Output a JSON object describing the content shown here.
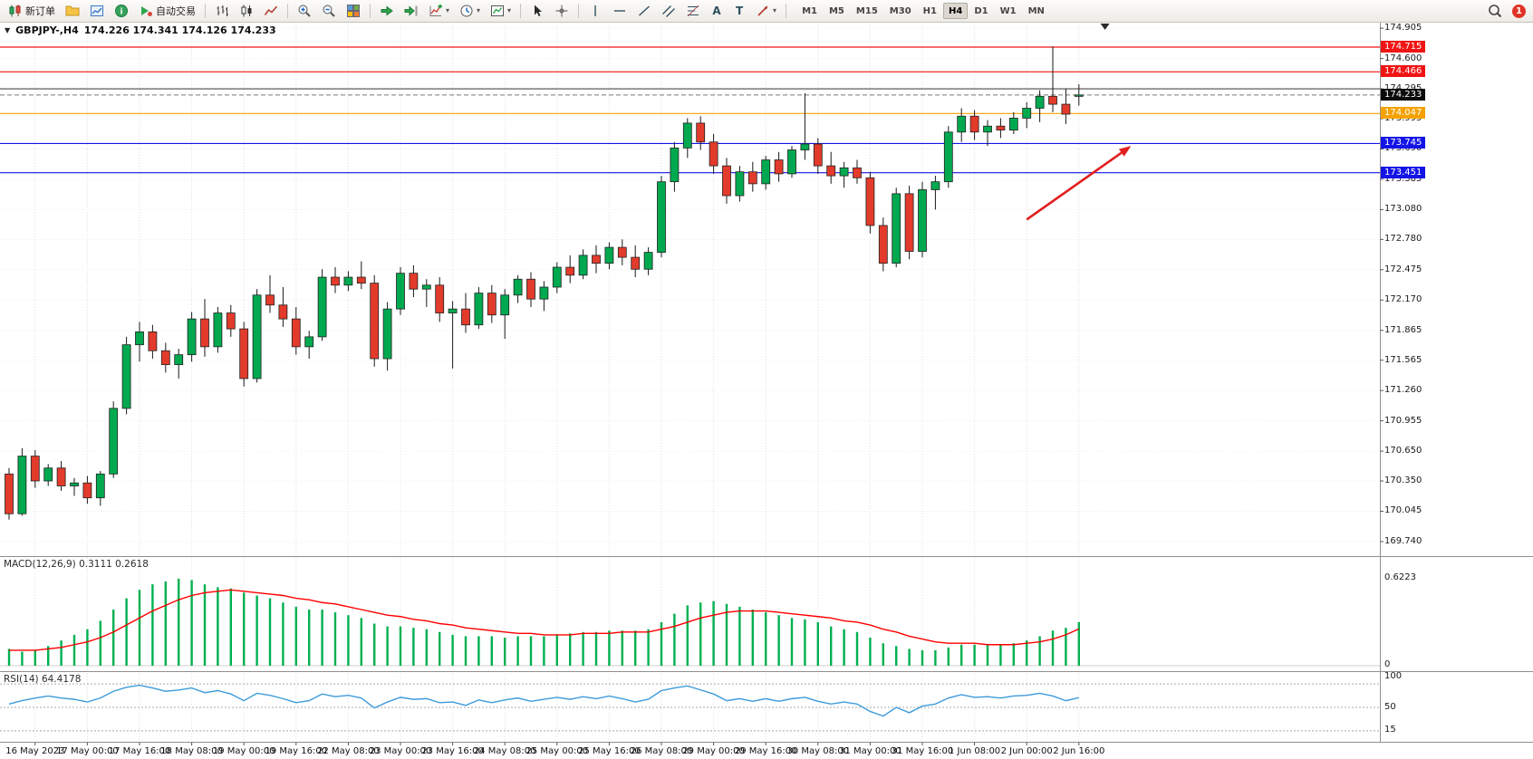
{
  "toolbar": {
    "new_order_label": "新订单",
    "autotrading_label": "自动交易",
    "text_tool_glyph": "A",
    "label_tool_glyph": "T",
    "caret_glyph": "▾",
    "collapse_glyph": "▼",
    "timeframes": [
      "M1",
      "M5",
      "M15",
      "M30",
      "H1",
      "H4",
      "D1",
      "W1",
      "MN"
    ],
    "active_timeframe": "H4",
    "notification_count": "1"
  },
  "chart_data": {
    "type": "candlestick",
    "symbol": "GBPJPY-",
    "period": "H4",
    "title_text": "GBPJPY-,H4",
    "ohlc_text": "174.226 174.341 174.126 174.233",
    "price_axis_ticks": [
      "174.905",
      "174.600",
      "174.295",
      "173.995",
      "173.690",
      "173.385",
      "173.080",
      "172.780",
      "172.475",
      "172.170",
      "171.865",
      "171.565",
      "171.260",
      "170.955",
      "170.650",
      "170.350",
      "170.045",
      "169.740"
    ],
    "time_axis_labels": [
      "16 May 2023",
      "17 May 00:00",
      "17 May 16:00",
      "18 May 08:00",
      "19 May 00:00",
      "19 May 16:00",
      "22 May 08:00",
      "23 May 00:00",
      "23 May 16:00",
      "24 May 08:00",
      "25 May 00:00",
      "25 May 16:00",
      "26 May 08:00",
      "29 May 00:00",
      "29 May 16:00",
      "30 May 08:00",
      "31 May 00:00",
      "31 May 16:00",
      "1 Jun 08:00",
      "2 Jun 00:00",
      "2 Jun 16:00"
    ],
    "time_label_start_index": 2,
    "time_label_step": 4,
    "colors": {
      "bull": "#00a94f",
      "bear": "#e23b2b",
      "wick": "#1a1a1a",
      "grid": "#e2e2e2",
      "separator": "#8f8f8f",
      "macd_hist": "#00b050",
      "macd_signal": "#ff0000",
      "rsi_line": "#3e9bdb",
      "axis_text": "#1a1a1a"
    },
    "candles_ohlc": [
      [
        170.42,
        170.48,
        169.96,
        170.02
      ],
      [
        170.02,
        170.68,
        170.0,
        170.6
      ],
      [
        170.6,
        170.66,
        170.28,
        170.35
      ],
      [
        170.35,
        170.52,
        170.3,
        170.48
      ],
      [
        170.48,
        170.55,
        170.25,
        170.3
      ],
      [
        170.3,
        170.38,
        170.2,
        170.33
      ],
      [
        170.33,
        170.4,
        170.12,
        170.18
      ],
      [
        170.18,
        170.45,
        170.1,
        170.42
      ],
      [
        170.42,
        171.15,
        170.38,
        171.08
      ],
      [
        171.08,
        171.8,
        171.02,
        171.72
      ],
      [
        171.72,
        171.95,
        171.55,
        171.85
      ],
      [
        171.85,
        171.92,
        171.58,
        171.66
      ],
      [
        171.66,
        171.74,
        171.44,
        171.52
      ],
      [
        171.52,
        171.68,
        171.38,
        171.62
      ],
      [
        171.62,
        172.05,
        171.55,
        171.98
      ],
      [
        171.98,
        172.18,
        171.6,
        171.7
      ],
      [
        171.7,
        172.1,
        171.64,
        172.04
      ],
      [
        172.04,
        172.12,
        171.8,
        171.88
      ],
      [
        171.88,
        171.95,
        171.3,
        171.38
      ],
      [
        171.38,
        172.28,
        171.34,
        172.22
      ],
      [
        172.22,
        172.42,
        172.04,
        172.12
      ],
      [
        172.12,
        172.3,
        171.9,
        171.98
      ],
      [
        171.98,
        172.1,
        171.62,
        171.7
      ],
      [
        171.7,
        171.86,
        171.58,
        171.8
      ],
      [
        171.8,
        172.48,
        171.76,
        172.4
      ],
      [
        172.4,
        172.5,
        172.24,
        172.32
      ],
      [
        172.32,
        172.46,
        172.26,
        172.4
      ],
      [
        172.4,
        172.56,
        172.28,
        172.34
      ],
      [
        172.34,
        172.42,
        171.5,
        171.58
      ],
      [
        171.58,
        172.15,
        171.46,
        172.08
      ],
      [
        172.08,
        172.5,
        172.02,
        172.44
      ],
      [
        172.44,
        172.52,
        172.2,
        172.28
      ],
      [
        172.28,
        172.38,
        172.1,
        172.32
      ],
      [
        172.32,
        172.4,
        171.95,
        172.04
      ],
      [
        172.04,
        172.16,
        171.48,
        172.08
      ],
      [
        172.08,
        172.24,
        171.84,
        171.92
      ],
      [
        171.92,
        172.3,
        171.88,
        172.24
      ],
      [
        172.24,
        172.32,
        171.94,
        172.02
      ],
      [
        172.02,
        172.28,
        171.78,
        172.22
      ],
      [
        172.22,
        172.42,
        172.14,
        172.38
      ],
      [
        172.38,
        172.45,
        172.1,
        172.18
      ],
      [
        172.18,
        172.36,
        172.06,
        172.3
      ],
      [
        172.3,
        172.55,
        172.24,
        172.5
      ],
      [
        172.5,
        172.62,
        172.34,
        172.42
      ],
      [
        172.42,
        172.68,
        172.38,
        172.62
      ],
      [
        172.62,
        172.72,
        172.44,
        172.54
      ],
      [
        172.54,
        172.75,
        172.48,
        172.7
      ],
      [
        172.7,
        172.78,
        172.52,
        172.6
      ],
      [
        172.6,
        172.72,
        172.4,
        172.48
      ],
      [
        172.48,
        172.7,
        172.42,
        172.65
      ],
      [
        172.65,
        173.42,
        172.6,
        173.36
      ],
      [
        173.36,
        173.76,
        173.26,
        173.7
      ],
      [
        173.7,
        174.0,
        173.6,
        173.95
      ],
      [
        173.95,
        174.02,
        173.68,
        173.76
      ],
      [
        173.76,
        173.84,
        173.44,
        173.52
      ],
      [
        173.52,
        173.6,
        173.14,
        173.22
      ],
      [
        173.22,
        173.52,
        173.16,
        173.46
      ],
      [
        173.46,
        173.56,
        173.26,
        173.34
      ],
      [
        173.34,
        173.62,
        173.28,
        173.58
      ],
      [
        173.58,
        173.66,
        173.36,
        173.44
      ],
      [
        173.44,
        173.72,
        173.4,
        173.68
      ],
      [
        173.68,
        174.25,
        173.58,
        173.74
      ],
      [
        173.74,
        173.8,
        173.44,
        173.52
      ],
      [
        173.52,
        173.66,
        173.34,
        173.42
      ],
      [
        173.42,
        173.56,
        173.3,
        173.5
      ],
      [
        173.5,
        173.58,
        173.34,
        173.4
      ],
      [
        173.4,
        173.46,
        172.84,
        172.92
      ],
      [
        172.92,
        173.0,
        172.46,
        172.54
      ],
      [
        172.54,
        173.3,
        172.5,
        173.24
      ],
      [
        173.24,
        173.32,
        172.58,
        172.66
      ],
      [
        172.66,
        173.36,
        172.6,
        173.28
      ],
      [
        173.28,
        173.42,
        173.08,
        173.36
      ],
      [
        173.36,
        173.92,
        173.3,
        173.86
      ],
      [
        173.86,
        174.1,
        173.76,
        174.02
      ],
      [
        174.02,
        174.08,
        173.78,
        173.86
      ],
      [
        173.86,
        173.98,
        173.72,
        173.92
      ],
      [
        173.92,
        174.0,
        173.8,
        173.88
      ],
      [
        173.88,
        174.06,
        173.84,
        174.0
      ],
      [
        174.0,
        174.16,
        173.9,
        174.1
      ],
      [
        174.1,
        174.28,
        173.96,
        174.22
      ],
      [
        174.22,
        174.72,
        174.06,
        174.14
      ],
      [
        174.14,
        174.3,
        173.94,
        174.04
      ],
      [
        174.226,
        174.341,
        174.126,
        174.233
      ]
    ],
    "horizontal_lines": [
      {
        "price": 174.715,
        "color": "#f01414",
        "badge": "174.715"
      },
      {
        "price": 174.466,
        "color": "#f01414",
        "badge": "174.466"
      },
      {
        "price": 174.295,
        "color": "#4a4a4a",
        "badge": null
      },
      {
        "price": 174.047,
        "color": "#f5a100",
        "badge": "174.047"
      },
      {
        "price": 173.745,
        "color": "#1414e6",
        "badge": "173.745"
      },
      {
        "price": 173.451,
        "color": "#1414e6",
        "badge": "173.451"
      }
    ],
    "current_price": {
      "value": 174.233,
      "badge": "174.233",
      "badge_bg": "#0a0a0a"
    },
    "annotation_arrow": {
      "from_bar": 78,
      "from_price": 172.98,
      "to_bar": 86,
      "to_price": 173.72,
      "color": "#e01f1f"
    },
    "shift_marker_bar": 84,
    "macd": {
      "label": "MACD(12,26,9) 0.3111 0.2618",
      "axis_max_label": "0.6223",
      "axis_zero_label": "0",
      "axis_max": 0.6223,
      "histogram": [
        0.12,
        0.1,
        0.11,
        0.14,
        0.18,
        0.22,
        0.26,
        0.32,
        0.4,
        0.48,
        0.54,
        0.58,
        0.6,
        0.62,
        0.61,
        0.58,
        0.56,
        0.55,
        0.52,
        0.5,
        0.48,
        0.45,
        0.42,
        0.4,
        0.4,
        0.38,
        0.36,
        0.34,
        0.3,
        0.28,
        0.28,
        0.27,
        0.26,
        0.24,
        0.22,
        0.21,
        0.21,
        0.21,
        0.2,
        0.21,
        0.21,
        0.21,
        0.22,
        0.23,
        0.24,
        0.24,
        0.25,
        0.25,
        0.25,
        0.26,
        0.31,
        0.37,
        0.43,
        0.45,
        0.46,
        0.44,
        0.42,
        0.4,
        0.38,
        0.36,
        0.34,
        0.33,
        0.31,
        0.28,
        0.26,
        0.24,
        0.2,
        0.16,
        0.14,
        0.12,
        0.11,
        0.11,
        0.13,
        0.15,
        0.15,
        0.15,
        0.15,
        0.16,
        0.18,
        0.21,
        0.25,
        0.27,
        0.3111
      ],
      "signal": [
        0.11,
        0.11,
        0.11,
        0.12,
        0.13,
        0.15,
        0.17,
        0.2,
        0.24,
        0.29,
        0.34,
        0.39,
        0.43,
        0.47,
        0.5,
        0.52,
        0.53,
        0.54,
        0.53,
        0.52,
        0.51,
        0.5,
        0.48,
        0.47,
        0.45,
        0.44,
        0.42,
        0.4,
        0.38,
        0.36,
        0.35,
        0.33,
        0.32,
        0.3,
        0.29,
        0.27,
        0.26,
        0.25,
        0.24,
        0.23,
        0.23,
        0.22,
        0.22,
        0.22,
        0.23,
        0.23,
        0.23,
        0.24,
        0.24,
        0.24,
        0.26,
        0.28,
        0.31,
        0.34,
        0.36,
        0.38,
        0.39,
        0.39,
        0.39,
        0.38,
        0.37,
        0.36,
        0.35,
        0.34,
        0.32,
        0.31,
        0.29,
        0.26,
        0.24,
        0.21,
        0.19,
        0.17,
        0.16,
        0.16,
        0.16,
        0.15,
        0.15,
        0.15,
        0.16,
        0.17,
        0.19,
        0.22,
        0.2618
      ]
    },
    "rsi": {
      "label": "RSI(14) 64.4178",
      "axis_labels": [
        "100",
        "50",
        "15"
      ],
      "level_lines": [
        85,
        50,
        15
      ],
      "values": [
        55,
        60,
        64,
        67,
        64,
        62,
        58,
        64,
        74,
        80,
        83,
        79,
        74,
        76,
        79,
        72,
        75,
        70,
        60,
        71,
        68,
        63,
        57,
        60,
        70,
        66,
        68,
        64,
        49,
        58,
        65,
        62,
        63,
        57,
        58,
        53,
        61,
        57,
        61,
        64,
        59,
        62,
        65,
        62,
        66,
        63,
        67,
        63,
        58,
        62,
        75,
        79,
        82,
        76,
        70,
        60,
        63,
        59,
        63,
        59,
        63,
        65,
        59,
        55,
        58,
        55,
        44,
        37,
        50,
        42,
        52,
        55,
        64,
        69,
        65,
        66,
        64,
        67,
        68,
        71,
        67,
        60,
        64.4
      ]
    }
  }
}
